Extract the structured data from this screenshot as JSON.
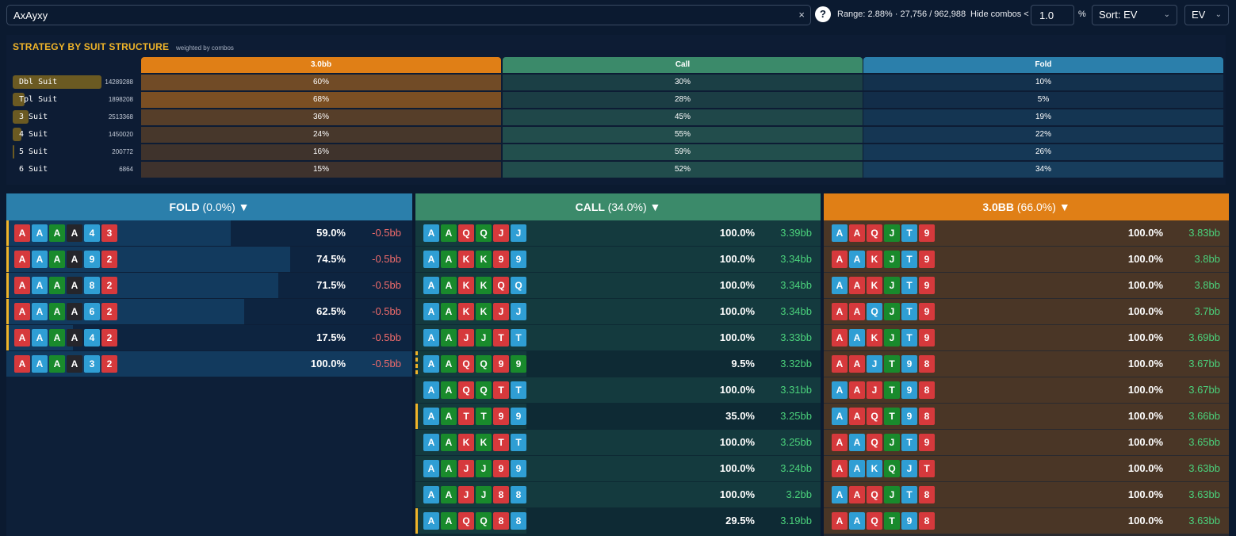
{
  "search": {
    "value": "AxAyxy",
    "clear_icon": "×"
  },
  "toolbar": {
    "help_label": "?",
    "range_text": "Range: 2.88% · 27,756 / 962,988",
    "hide_label": "Hide combos <",
    "hide_value": "1.0",
    "pct_label": "%",
    "sort_label": "Sort: EV",
    "metric_label": "EV"
  },
  "strategy": {
    "title": "STRATEGY BY SUIT STRUCTURE",
    "subtitle": "weighted by combos",
    "actions": [
      {
        "label": "3.0bb",
        "color": "#e07f16"
      },
      {
        "label": "Call",
        "color": "#3b8a6a"
      },
      {
        "label": "Fold",
        "color": "#2b7fab"
      }
    ],
    "rows": [
      {
        "label": "Dbl Suit",
        "count": "14289288",
        "share": 1.0,
        "values": [
          "60%",
          "30%",
          "10%"
        ],
        "fracs": [
          0.6,
          0.3,
          0.1
        ]
      },
      {
        "label": "Tpl Suit",
        "count": "1898208",
        "share": 0.13,
        "values": [
          "68%",
          "28%",
          "5%"
        ],
        "fracs": [
          0.68,
          0.28,
          0.05
        ]
      },
      {
        "label": "3 Suit",
        "count": "2513368",
        "share": 0.18,
        "values": [
          "36%",
          "45%",
          "19%"
        ],
        "fracs": [
          0.36,
          0.45,
          0.19
        ]
      },
      {
        "label": "4 Suit",
        "count": "1450020",
        "share": 0.1,
        "values": [
          "24%",
          "55%",
          "22%"
        ],
        "fracs": [
          0.24,
          0.55,
          0.22
        ]
      },
      {
        "label": "5 Suit",
        "count": "200772",
        "share": 0.015,
        "values": [
          "16%",
          "59%",
          "26%"
        ],
        "fracs": [
          0.16,
          0.59,
          0.26
        ]
      },
      {
        "label": "6 Suit",
        "count": "6864",
        "share": 0.0,
        "values": [
          "15%",
          "52%",
          "34%"
        ],
        "fracs": [
          0.15,
          0.52,
          0.34
        ]
      }
    ]
  },
  "columns": [
    {
      "name": "fold",
      "title": "FOLD",
      "pct": "(0.0%)",
      "arrow": "▼",
      "color": "#2b7fab",
      "bg": "#0d1f38",
      "barColor": "#123a5e",
      "evColor": "#ef6b6b",
      "rows": [
        {
          "cards": [
            [
              "A",
              "r"
            ],
            [
              "A",
              "b"
            ],
            [
              "A",
              "g"
            ],
            [
              "A",
              "k"
            ],
            [
              "4",
              "b"
            ],
            [
              "3",
              "r"
            ]
          ],
          "freq": "59.0%",
          "freqValue": 0.59,
          "ev": "-0.5bb",
          "marked": true
        },
        {
          "cards": [
            [
              "A",
              "r"
            ],
            [
              "A",
              "b"
            ],
            [
              "A",
              "g"
            ],
            [
              "A",
              "k"
            ],
            [
              "9",
              "b"
            ],
            [
              "2",
              "r"
            ]
          ],
          "freq": "74.5%",
          "freqValue": 0.745,
          "ev": "-0.5bb",
          "marked": true
        },
        {
          "cards": [
            [
              "A",
              "r"
            ],
            [
              "A",
              "b"
            ],
            [
              "A",
              "g"
            ],
            [
              "A",
              "k"
            ],
            [
              "8",
              "b"
            ],
            [
              "2",
              "r"
            ]
          ],
          "freq": "71.5%",
          "freqValue": 0.715,
          "ev": "-0.5bb",
          "marked": true
        },
        {
          "cards": [
            [
              "A",
              "r"
            ],
            [
              "A",
              "b"
            ],
            [
              "A",
              "g"
            ],
            [
              "A",
              "k"
            ],
            [
              "6",
              "b"
            ],
            [
              "2",
              "r"
            ]
          ],
          "freq": "62.5%",
          "freqValue": 0.625,
          "ev": "-0.5bb",
          "marked": true
        },
        {
          "cards": [
            [
              "A",
              "r"
            ],
            [
              "A",
              "b"
            ],
            [
              "A",
              "g"
            ],
            [
              "A",
              "k"
            ],
            [
              "4",
              "b"
            ],
            [
              "2",
              "r"
            ]
          ],
          "freq": "17.5%",
          "freqValue": 0.175,
          "ev": "-0.5bb",
          "marked": true
        },
        {
          "cards": [
            [
              "A",
              "r"
            ],
            [
              "A",
              "b"
            ],
            [
              "A",
              "g"
            ],
            [
              "A",
              "k"
            ],
            [
              "3",
              "b"
            ],
            [
              "2",
              "r"
            ]
          ],
          "freq": "100.0%",
          "freqValue": 1.0,
          "ev": "-0.5bb",
          "marked": false
        }
      ]
    },
    {
      "name": "call",
      "title": "CALL",
      "pct": "(34.0%)",
      "arrow": "▼",
      "color": "#3b8a6a",
      "bg": "#0e2a34",
      "barColor": "#14443f",
      "evColor": "#4ad17b",
      "rows": [
        {
          "cards": [
            [
              "A",
              "b"
            ],
            [
              "A",
              "g"
            ],
            [
              "Q",
              "r"
            ],
            [
              "Q",
              "g"
            ],
            [
              "J",
              "r"
            ],
            [
              "J",
              "b"
            ]
          ],
          "freq": "100.0%",
          "freqValue": 1.0,
          "ev": "3.39bb",
          "marked": false
        },
        {
          "cards": [
            [
              "A",
              "b"
            ],
            [
              "A",
              "g"
            ],
            [
              "K",
              "r"
            ],
            [
              "K",
              "g"
            ],
            [
              "9",
              "r"
            ],
            [
              "9",
              "b"
            ]
          ],
          "freq": "100.0%",
          "freqValue": 1.0,
          "ev": "3.34bb",
          "marked": false
        },
        {
          "cards": [
            [
              "A",
              "b"
            ],
            [
              "A",
              "g"
            ],
            [
              "K",
              "r"
            ],
            [
              "K",
              "g"
            ],
            [
              "Q",
              "r"
            ],
            [
              "Q",
              "b"
            ]
          ],
          "freq": "100.0%",
          "freqValue": 1.0,
          "ev": "3.34bb",
          "marked": false
        },
        {
          "cards": [
            [
              "A",
              "b"
            ],
            [
              "A",
              "g"
            ],
            [
              "K",
              "r"
            ],
            [
              "K",
              "g"
            ],
            [
              "J",
              "r"
            ],
            [
              "J",
              "b"
            ]
          ],
          "freq": "100.0%",
          "freqValue": 1.0,
          "ev": "3.34bb",
          "marked": false
        },
        {
          "cards": [
            [
              "A",
              "b"
            ],
            [
              "A",
              "g"
            ],
            [
              "J",
              "r"
            ],
            [
              "J",
              "g"
            ],
            [
              "T",
              "r"
            ],
            [
              "T",
              "b"
            ]
          ],
          "freq": "100.0%",
          "freqValue": 1.0,
          "ev": "3.33bb",
          "marked": false
        },
        {
          "cards": [
            [
              "A",
              "b"
            ],
            [
              "A",
              "g"
            ],
            [
              "Q",
              "r"
            ],
            [
              "Q",
              "g"
            ],
            [
              "9",
              "r"
            ],
            [
              "9",
              "g"
            ]
          ],
          "freq": "9.5%",
          "freqValue": 0.095,
          "ev": "3.32bb",
          "marked": "dashed"
        },
        {
          "cards": [
            [
              "A",
              "b"
            ],
            [
              "A",
              "g"
            ],
            [
              "Q",
              "r"
            ],
            [
              "Q",
              "g"
            ],
            [
              "T",
              "r"
            ],
            [
              "T",
              "b"
            ]
          ],
          "freq": "100.0%",
          "freqValue": 1.0,
          "ev": "3.31bb",
          "marked": false
        },
        {
          "cards": [
            [
              "A",
              "b"
            ],
            [
              "A",
              "g"
            ],
            [
              "T",
              "r"
            ],
            [
              "T",
              "g"
            ],
            [
              "9",
              "r"
            ],
            [
              "9",
              "b"
            ]
          ],
          "freq": "35.0%",
          "freqValue": 0.35,
          "ev": "3.25bb",
          "marked": true
        },
        {
          "cards": [
            [
              "A",
              "b"
            ],
            [
              "A",
              "g"
            ],
            [
              "K",
              "r"
            ],
            [
              "K",
              "g"
            ],
            [
              "T",
              "r"
            ],
            [
              "T",
              "b"
            ]
          ],
          "freq": "100.0%",
          "freqValue": 1.0,
          "ev": "3.25bb",
          "marked": false
        },
        {
          "cards": [
            [
              "A",
              "b"
            ],
            [
              "A",
              "g"
            ],
            [
              "J",
              "r"
            ],
            [
              "J",
              "g"
            ],
            [
              "9",
              "r"
            ],
            [
              "9",
              "b"
            ]
          ],
          "freq": "100.0%",
          "freqValue": 1.0,
          "ev": "3.24bb",
          "marked": false
        },
        {
          "cards": [
            [
              "A",
              "b"
            ],
            [
              "A",
              "g"
            ],
            [
              "J",
              "r"
            ],
            [
              "J",
              "g"
            ],
            [
              "8",
              "r"
            ],
            [
              "8",
              "b"
            ]
          ],
          "freq": "100.0%",
          "freqValue": 1.0,
          "ev": "3.2bb",
          "marked": false
        },
        {
          "cards": [
            [
              "A",
              "b"
            ],
            [
              "A",
              "g"
            ],
            [
              "Q",
              "r"
            ],
            [
              "Q",
              "g"
            ],
            [
              "8",
              "r"
            ],
            [
              "8",
              "b"
            ]
          ],
          "freq": "29.5%",
          "freqValue": 0.295,
          "ev": "3.19bb",
          "marked": true
        }
      ]
    },
    {
      "name": "raise",
      "title": "3.0BB",
      "pct": "(66.0%)",
      "arrow": "▼",
      "color": "#e07f16",
      "bg": "#2a2a2e",
      "barColor": "#4a3625",
      "evColor": "#4ad17b",
      "rows": [
        {
          "cards": [
            [
              "A",
              "b"
            ],
            [
              "A",
              "r"
            ],
            [
              "Q",
              "r"
            ],
            [
              "J",
              "g"
            ],
            [
              "T",
              "b"
            ],
            [
              "9",
              "r"
            ]
          ],
          "freq": "100.0%",
          "freqValue": 1.0,
          "ev": "3.83bb",
          "marked": false
        },
        {
          "cards": [
            [
              "A",
              "r"
            ],
            [
              "A",
              "b"
            ],
            [
              "K",
              "r"
            ],
            [
              "J",
              "g"
            ],
            [
              "T",
              "b"
            ],
            [
              "9",
              "r"
            ]
          ],
          "freq": "100.0%",
          "freqValue": 1.0,
          "ev": "3.8bb",
          "marked": false
        },
        {
          "cards": [
            [
              "A",
              "b"
            ],
            [
              "A",
              "r"
            ],
            [
              "K",
              "r"
            ],
            [
              "J",
              "g"
            ],
            [
              "T",
              "b"
            ],
            [
              "9",
              "r"
            ]
          ],
          "freq": "100.0%",
          "freqValue": 1.0,
          "ev": "3.8bb",
          "marked": false
        },
        {
          "cards": [
            [
              "A",
              "r"
            ],
            [
              "A",
              "r"
            ],
            [
              "Q",
              "b"
            ],
            [
              "J",
              "g"
            ],
            [
              "T",
              "b"
            ],
            [
              "9",
              "r"
            ]
          ],
          "freq": "100.0%",
          "freqValue": 1.0,
          "ev": "3.7bb",
          "marked": false
        },
        {
          "cards": [
            [
              "A",
              "r"
            ],
            [
              "A",
              "b"
            ],
            [
              "K",
              "r"
            ],
            [
              "J",
              "g"
            ],
            [
              "T",
              "b"
            ],
            [
              "9",
              "r"
            ]
          ],
          "freq": "100.0%",
          "freqValue": 1.0,
          "ev": "3.69bb",
          "marked": false
        },
        {
          "cards": [
            [
              "A",
              "r"
            ],
            [
              "A",
              "r"
            ],
            [
              "J",
              "b"
            ],
            [
              "T",
              "g"
            ],
            [
              "9",
              "b"
            ],
            [
              "8",
              "r"
            ]
          ],
          "freq": "100.0%",
          "freqValue": 1.0,
          "ev": "3.67bb",
          "marked": false
        },
        {
          "cards": [
            [
              "A",
              "b"
            ],
            [
              "A",
              "r"
            ],
            [
              "J",
              "r"
            ],
            [
              "T",
              "g"
            ],
            [
              "9",
              "b"
            ],
            [
              "8",
              "r"
            ]
          ],
          "freq": "100.0%",
          "freqValue": 1.0,
          "ev": "3.67bb",
          "marked": false
        },
        {
          "cards": [
            [
              "A",
              "b"
            ],
            [
              "A",
              "r"
            ],
            [
              "Q",
              "r"
            ],
            [
              "T",
              "g"
            ],
            [
              "9",
              "b"
            ],
            [
              "8",
              "r"
            ]
          ],
          "freq": "100.0%",
          "freqValue": 1.0,
          "ev": "3.66bb",
          "marked": false
        },
        {
          "cards": [
            [
              "A",
              "r"
            ],
            [
              "A",
              "b"
            ],
            [
              "Q",
              "r"
            ],
            [
              "J",
              "g"
            ],
            [
              "T",
              "b"
            ],
            [
              "9",
              "r"
            ]
          ],
          "freq": "100.0%",
          "freqValue": 1.0,
          "ev": "3.65bb",
          "marked": false
        },
        {
          "cards": [
            [
              "A",
              "r"
            ],
            [
              "A",
              "b"
            ],
            [
              "K",
              "b"
            ],
            [
              "Q",
              "g"
            ],
            [
              "J",
              "b"
            ],
            [
              "T",
              "r"
            ]
          ],
          "freq": "100.0%",
          "freqValue": 1.0,
          "ev": "3.63bb",
          "marked": false
        },
        {
          "cards": [
            [
              "A",
              "b"
            ],
            [
              "A",
              "r"
            ],
            [
              "Q",
              "r"
            ],
            [
              "J",
              "g"
            ],
            [
              "T",
              "b"
            ],
            [
              "8",
              "r"
            ]
          ],
          "freq": "100.0%",
          "freqValue": 1.0,
          "ev": "3.63bb",
          "marked": false
        },
        {
          "cards": [
            [
              "A",
              "r"
            ],
            [
              "A",
              "b"
            ],
            [
              "Q",
              "r"
            ],
            [
              "T",
              "g"
            ],
            [
              "9",
              "b"
            ],
            [
              "8",
              "r"
            ]
          ],
          "freq": "100.0%",
          "freqValue": 1.0,
          "ev": "3.63bb",
          "marked": false
        }
      ]
    }
  ]
}
